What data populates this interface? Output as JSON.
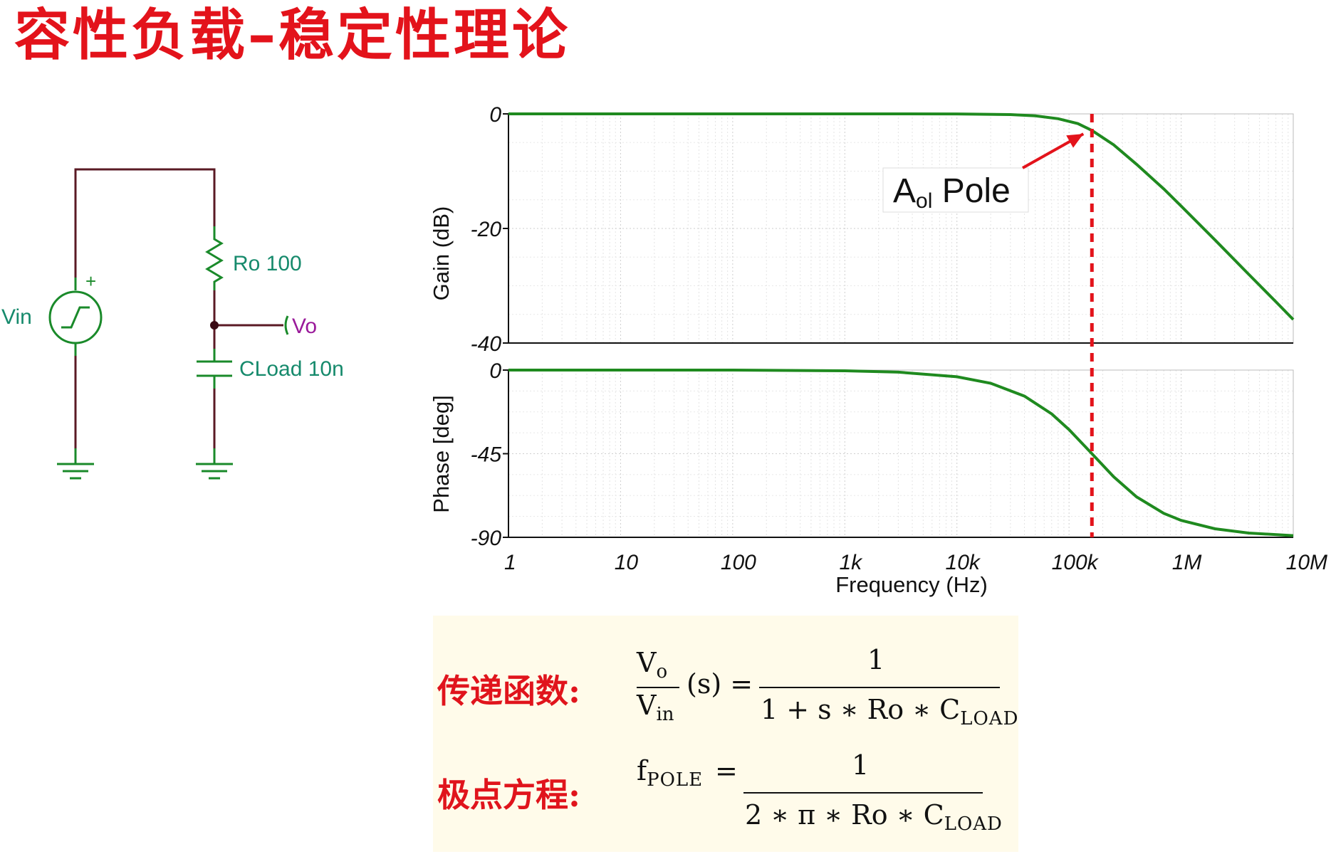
{
  "slide": {
    "title": "容性负载–稳定性理论"
  },
  "circuit": {
    "source_label": "Vin",
    "source_polarity": "+",
    "resistor_label": "Ro 100",
    "output_label": "Vo",
    "capacitor_label": "CLoad 10n",
    "colors": {
      "wire": "#5a1a24",
      "component": "#1a8a2a",
      "text": "#168a6c",
      "output_text": "#9a1a9a"
    }
  },
  "chart_data": [
    {
      "type": "line",
      "ylabel": "Gain (dB)",
      "ylim": [
        -40,
        0
      ],
      "yticks": [
        "0",
        "-20",
        "-40"
      ],
      "x_scale": "log",
      "xlim": [
        1,
        10000000
      ],
      "series": [
        {
          "color": "#1f8a1f",
          "x": [
            1,
            10,
            100,
            1000,
            10000,
            30000,
            50000,
            80000,
            120000,
            160000,
            250000,
            400000,
            700000,
            1000000,
            2000000,
            4000000,
            7000000,
            10000000
          ],
          "y": [
            0,
            0,
            0,
            0,
            -0.01,
            -0.13,
            -0.35,
            -0.85,
            -1.7,
            -2.9,
            -5.4,
            -8.8,
            -13.1,
            -16.1,
            -22.0,
            -28.0,
            -32.8,
            -35.9
          ]
        }
      ],
      "annotations": [
        {
          "text": "A",
          "sub": "ol",
          "tail": " Pole",
          "arrow_target_x": 160000,
          "arrow_target_y": -3
        }
      ],
      "marker_line": {
        "x": 160000,
        "color": "#e3131b",
        "style": "dashed"
      },
      "grid": true
    },
    {
      "type": "line",
      "ylabel": "Phase [deg]",
      "ylim": [
        -90,
        0
      ],
      "yticks": [
        "0",
        "-45",
        "-90"
      ],
      "x_scale": "log",
      "xlim": [
        1,
        10000000
      ],
      "xlabel": "Frequency (Hz)",
      "xticks": [
        "1",
        "10",
        "100",
        "1k",
        "10k",
        "100k",
        "1M",
        "10M"
      ],
      "series": [
        {
          "color": "#1f8a1f",
          "x": [
            1,
            10,
            100,
            1000,
            3000,
            10000,
            20000,
            40000,
            70000,
            100000,
            160000,
            250000,
            400000,
            700000,
            1000000,
            2000000,
            4000000,
            10000000
          ],
          "y": [
            0,
            0,
            0,
            -0.4,
            -1.1,
            -3.6,
            -7.1,
            -14.0,
            -23.6,
            -32.0,
            -45.0,
            -57.4,
            -68.2,
            -77.1,
            -80.9,
            -85.4,
            -87.7,
            -89.1
          ]
        }
      ],
      "marker_line": {
        "x": 160000,
        "color": "#e3131b",
        "style": "dashed"
      },
      "grid": true
    }
  ],
  "formulas": {
    "transfer_label": "传递函数:",
    "transfer_num_v": "V",
    "transfer_num_sub": "o",
    "transfer_den_v": "V",
    "transfer_den_sub": "in",
    "transfer_s": "(s) =",
    "transfer_rhs_num": "1",
    "transfer_rhs_den": "1 + s ∗ Ro ∗ C",
    "transfer_rhs_den_sub": "LOAD",
    "pole_label": "极点方程:",
    "pole_lhs": "f",
    "pole_lhs_sub": "POLE",
    "pole_eq": "=",
    "pole_num": "1",
    "pole_den": "2 ∗ π ∗ Ro ∗ C",
    "pole_den_sub": "LOAD"
  }
}
